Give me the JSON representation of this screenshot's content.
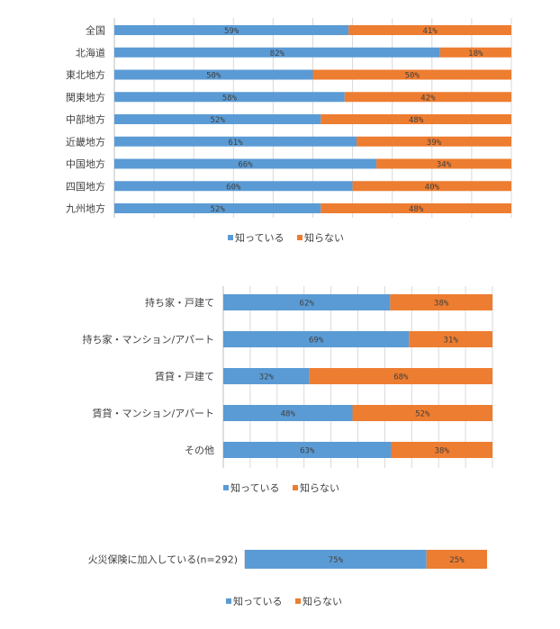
{
  "colors": {
    "known": "#5b9bd5",
    "unknown": "#ed7d31",
    "grid": "#d9d9d9",
    "text": "#404040"
  },
  "chart_data": [
    {
      "type": "bar",
      "orientation": "horizontal",
      "stacked": "percent",
      "categories": [
        "全国",
        "北海道",
        "東北地方",
        "関東地方",
        "中部地方",
        "近畿地方",
        "中国地方",
        "四国地方",
        "九州地方"
      ],
      "series": [
        {
          "name": "知っている",
          "values": [
            59,
            82,
            50,
            58,
            52,
            61,
            66,
            60,
            52
          ],
          "labels": [
            "59%",
            "82%",
            "50%",
            "58%",
            "52%",
            "61%",
            "66%",
            "60%",
            "52%"
          ]
        },
        {
          "name": "知らない",
          "values": [
            41,
            18,
            50,
            42,
            48,
            39,
            34,
            40,
            48
          ],
          "labels": [
            "41%",
            "18%",
            "50%",
            "42%",
            "48%",
            "39%",
            "34%",
            "40%",
            "48%"
          ]
        }
      ],
      "xlim": [
        0,
        100
      ],
      "grid": true,
      "legend": [
        "知っている",
        "知らない"
      ]
    },
    {
      "type": "bar",
      "orientation": "horizontal",
      "stacked": "percent",
      "categories": [
        "持ち家・戸建て",
        "持ち家・マンション/アパート",
        "賃貸・戸建て",
        "賃貸・マンション/アパート",
        "その他"
      ],
      "series": [
        {
          "name": "知っている",
          "values": [
            62,
            69,
            32,
            48,
            63
          ],
          "labels": [
            "62%",
            "69%",
            "32%",
            "48%",
            "63%"
          ]
        },
        {
          "name": "知らない",
          "values": [
            38,
            31,
            68,
            52,
            38
          ],
          "labels": [
            "38%",
            "31%",
            "68%",
            "52%",
            "38%"
          ]
        }
      ],
      "xlim": [
        0,
        100
      ],
      "grid": true,
      "legend": [
        "知っている",
        "知らない"
      ]
    },
    {
      "type": "bar",
      "orientation": "horizontal",
      "stacked": "percent",
      "categories": [
        "火災保険に加入している(n=292)"
      ],
      "series": [
        {
          "name": "知っている",
          "values": [
            75
          ],
          "labels": [
            "75%"
          ]
        },
        {
          "name": "知らない",
          "values": [
            25
          ],
          "labels": [
            "25%"
          ]
        }
      ],
      "xlim": [
        0,
        100
      ],
      "grid": false,
      "legend": [
        "知っている",
        "知らない"
      ]
    }
  ]
}
